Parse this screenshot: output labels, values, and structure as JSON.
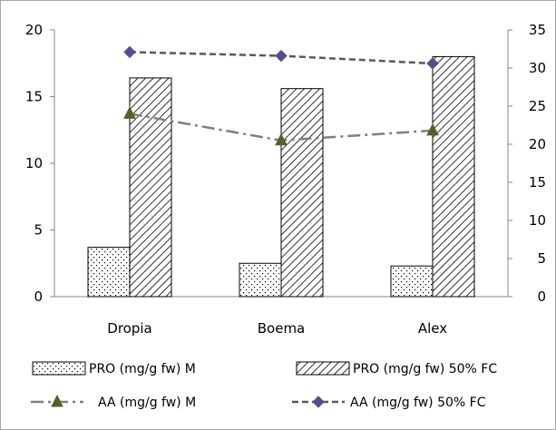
{
  "chart_data": {
    "type": "bar",
    "title": "",
    "categories": [
      "Dropia",
      "Boema",
      "Alex"
    ],
    "y_left": {
      "min": 0,
      "max": 20,
      "ticks": [
        "0",
        "5",
        "10",
        "15",
        "20"
      ]
    },
    "y_right": {
      "min": 0,
      "max": 35,
      "ticks": [
        "0",
        "5",
        "10",
        "15",
        "20",
        "25",
        "30",
        "35"
      ]
    },
    "series": [
      {
        "name": "PRO (mg/g fw) M",
        "type": "bar",
        "axis": "left",
        "pattern": "dots",
        "values": [
          3.7,
          2.5,
          2.3
        ]
      },
      {
        "name": "PRO (mg/g fw) 50% FC",
        "type": "bar",
        "axis": "left",
        "pattern": "hatch",
        "values": [
          16.4,
          15.6,
          18.0
        ]
      },
      {
        "name": "AA (mg/g fw) M",
        "type": "line",
        "axis": "right",
        "color": "#7f7f7f",
        "marker_color": "#4f6228",
        "marker": "triangle",
        "dash": "dash-dot",
        "values": [
          24.0,
          20.5,
          21.8
        ]
      },
      {
        "name": "AA (mg/g fw) 50% FC",
        "type": "line",
        "axis": "right",
        "color": "#595959",
        "marker_color": "#5b4b8a",
        "marker": "diamond",
        "dash": "dashed",
        "values": [
          32.1,
          31.6,
          30.6
        ]
      }
    ],
    "grid": false,
    "legend_position": "bottom"
  }
}
